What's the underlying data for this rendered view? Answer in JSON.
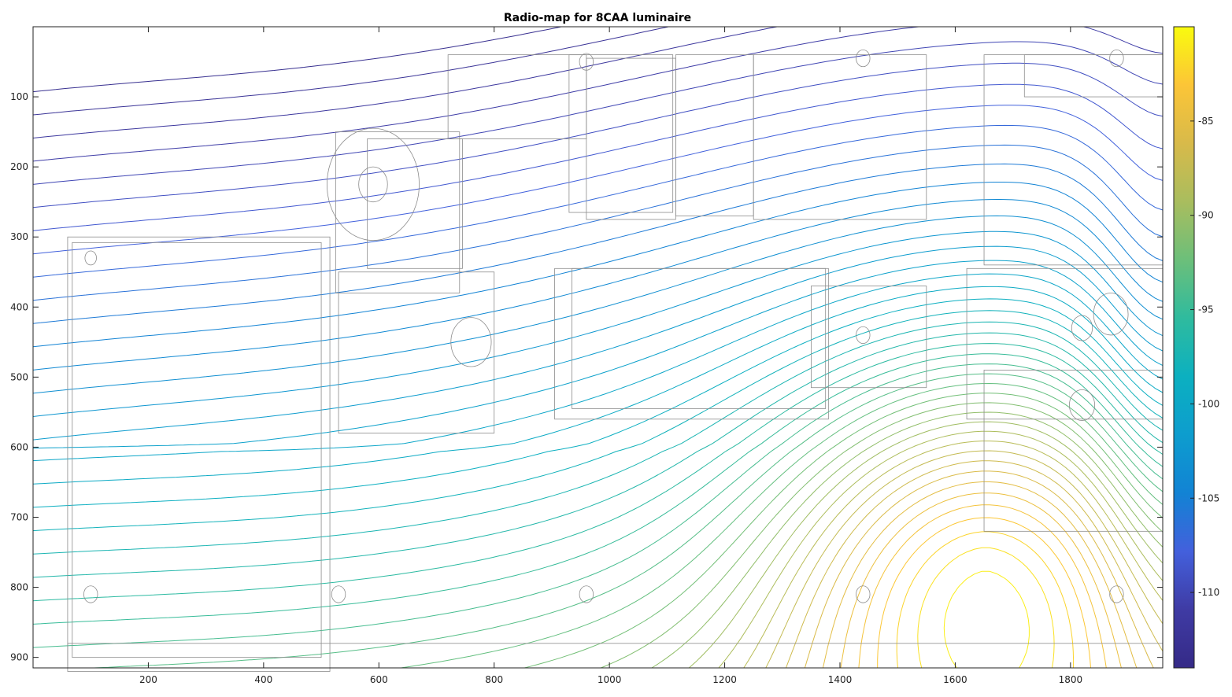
{
  "chart_data": {
    "type": "contour",
    "title": "Radio-map for 8CAA luminaire",
    "xlabel": "",
    "ylabel": "",
    "xlim": [
      0,
      1960
    ],
    "ylim": [
      0,
      915
    ],
    "y_reversed": true,
    "xticks": [
      200,
      400,
      600,
      800,
      1000,
      1200,
      1400,
      1600,
      1800
    ],
    "yticks": [
      100,
      200,
      300,
      400,
      500,
      600,
      700,
      800,
      900
    ],
    "colorbar": {
      "range": [
        -114,
        -80
      ],
      "ticks": [
        -85,
        -90,
        -95,
        -100,
        -105,
        -110
      ],
      "colormap": "parula"
    },
    "peak": {
      "x": 1650,
      "y": 760,
      "value": -80
    },
    "contour_levels": {
      "min": -113,
      "max": -80,
      "step": 0.75
    },
    "grid": false,
    "background_overlay": "floor plan"
  },
  "colors": {
    "parula": [
      "#352a87",
      "#3f3ba4",
      "#4360dc",
      "#1283d4",
      "#0d9dce",
      "#0cb0c0",
      "#2fbb9e",
      "#6cbf7a",
      "#a9bd5e",
      "#d8ba4a",
      "#fcc537",
      "#f9fb0e"
    ],
    "floorplan": "#8c8c8c"
  }
}
